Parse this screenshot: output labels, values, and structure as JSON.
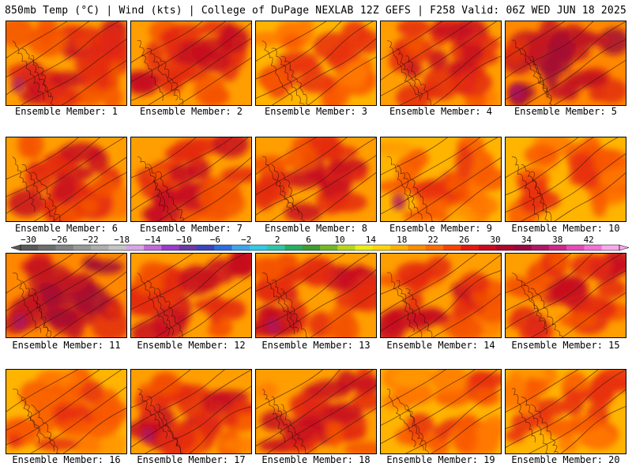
{
  "header": {
    "left": "850mb Temp (°C) | Wind (kts) | College of DuPage NEXLAB",
    "right": "12Z GEFS | F258 Valid: 06Z WED JUN 18 2025"
  },
  "colorbar": {
    "labels": [
      "-30",
      "-26",
      "-22",
      "-18",
      "-14",
      "-10",
      "-6",
      "-2",
      "2",
      "6",
      "10",
      "14",
      "18",
      "22",
      "26",
      "30",
      "34",
      "38",
      "42"
    ],
    "colors": [
      "#5a5a5a",
      "#6e6e6e",
      "#838383",
      "#999999",
      "#aeaeae",
      "#c4c4c4",
      "#d8a6e6",
      "#c06ad8",
      "#9a3ccc",
      "#6a3aa6",
      "#3b44b8",
      "#2d6de0",
      "#3fa4ec",
      "#34c8e4",
      "#2ec6a8",
      "#27ae64",
      "#3e9e2e",
      "#74b826",
      "#b8d61c",
      "#ecec18",
      "#ffd40c",
      "#ffb004",
      "#ff8c00",
      "#ff6c00",
      "#f84400",
      "#e41a10",
      "#cc0a1e",
      "#b0062a",
      "#9c0640",
      "#b01864",
      "#d0288a",
      "#e84ab4",
      "#f472d8",
      "#f7a8ea"
    ]
  },
  "panels": [
    {
      "label": "Ensemble Member: 1",
      "pal": "hot"
    },
    {
      "label": "Ensemble Member: 2",
      "pal": "hot"
    },
    {
      "label": "Ensemble Member: 3",
      "pal": "mid"
    },
    {
      "label": "Ensemble Member: 4",
      "pal": "hot"
    },
    {
      "label": "Ensemble Member: 5",
      "pal": "vhot"
    },
    {
      "label": "Ensemble Member: 6",
      "pal": "hot"
    },
    {
      "label": "Ensemble Member: 7",
      "pal": "hot"
    },
    {
      "label": "Ensemble Member: 8",
      "pal": "hot"
    },
    {
      "label": "Ensemble Member: 9",
      "pal": "mid"
    },
    {
      "label": "Ensemble Member: 10",
      "pal": "mid"
    },
    {
      "label": "Ensemble Member: 11",
      "pal": "vhot"
    },
    {
      "label": "Ensemble Member: 12",
      "pal": "hot"
    },
    {
      "label": "Ensemble Member: 13",
      "pal": "hot"
    },
    {
      "label": "Ensemble Member: 14",
      "pal": "hot"
    },
    {
      "label": "Ensemble Member: 15",
      "pal": "hot"
    },
    {
      "label": "Ensemble Member: 16",
      "pal": "mid"
    },
    {
      "label": "Ensemble Member: 17",
      "pal": "hot"
    },
    {
      "label": "Ensemble Member: 18",
      "pal": "hot"
    },
    {
      "label": "Ensemble Member: 19",
      "pal": "mid"
    },
    {
      "label": "Ensemble Member: 20",
      "pal": "mid"
    }
  ]
}
